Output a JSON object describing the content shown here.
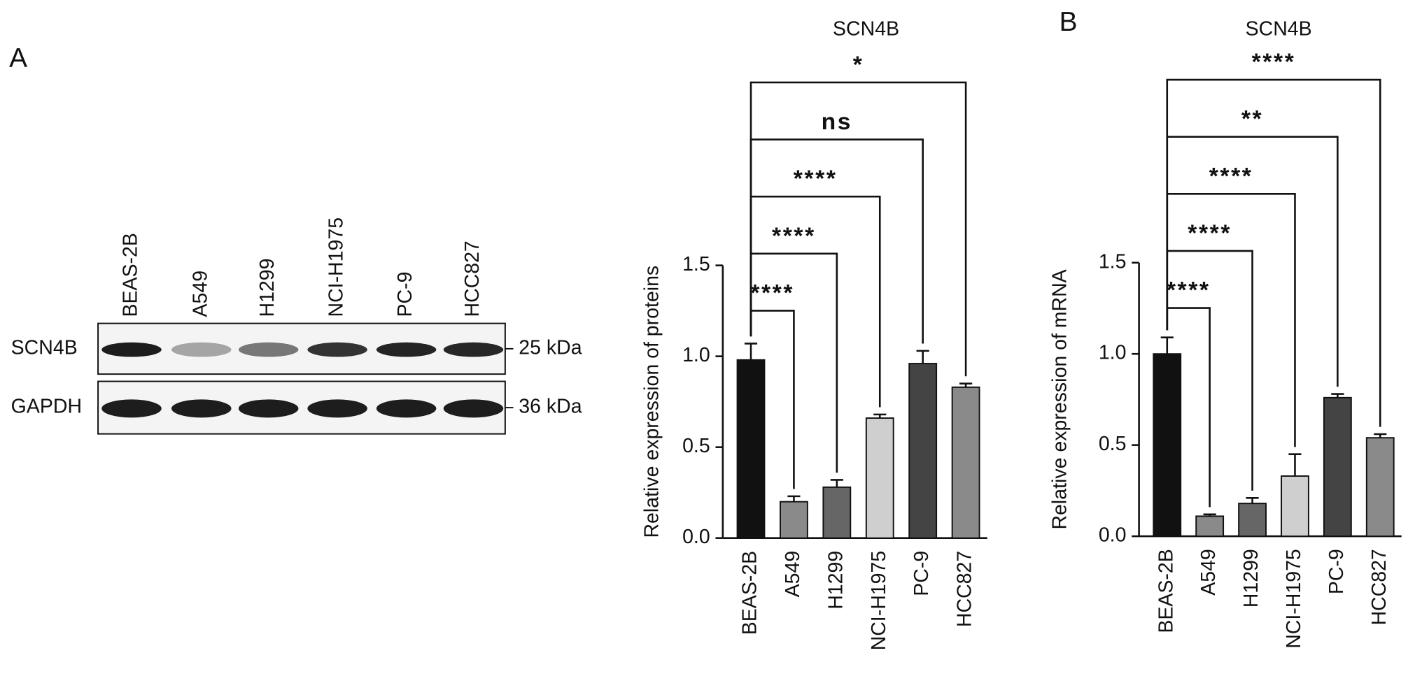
{
  "panel_labels": [
    "A",
    "B"
  ],
  "blot": {
    "lanes": [
      "BEAS-2B",
      "A549",
      "H1299",
      "NCI-H1975",
      "PC-9",
      "HCC827"
    ],
    "rows": [
      {
        "name": "SCN4B",
        "size": "25 kDa"
      },
      {
        "name": "GAPDH",
        "size": "36 kDa"
      }
    ]
  },
  "chart_data": [
    {
      "type": "bar",
      "title": "SCN4B",
      "y_label": "Relative expression of proteins",
      "categories": [
        "BEAS-2B",
        "A549",
        "H1299",
        "NCI-H1975",
        "PC-9",
        "HCC827"
      ],
      "values": [
        0.98,
        0.2,
        0.28,
        0.66,
        0.96,
        0.83
      ],
      "errors": [
        0.09,
        0.03,
        0.04,
        0.02,
        0.07,
        0.02
      ],
      "colors": [
        "#111111",
        "#8a8a8a",
        "#666666",
        "#cfcfcf",
        "#444444",
        "#8a8a8a"
      ],
      "annotations": [
        "****",
        "****",
        "****",
        "ns",
        "*"
      ],
      "ylim": [
        0,
        1.5
      ],
      "yticks": [
        {
          "value": 0,
          "label": "0.0"
        },
        0.5,
        {
          "value": 1,
          "label": "1.0"
        },
        1.5
      ]
    },
    {
      "type": "bar",
      "title": "SCN4B",
      "y_label": "Relative expression of mRNA",
      "categories": [
        "BEAS-2B",
        "A549",
        "H1299",
        "NCI-H1975",
        "PC-9",
        "HCC827"
      ],
      "values": [
        1.0,
        0.11,
        0.18,
        0.33,
        0.76,
        0.54
      ],
      "errors": [
        0.09,
        0.01,
        0.03,
        0.12,
        0.02,
        0.02
      ],
      "colors": [
        "#111111",
        "#8a8a8a",
        "#666666",
        "#cfcfcf",
        "#444444",
        "#8a8a8a"
      ],
      "annotations": [
        "****",
        "****",
        "****",
        "**",
        "****"
      ],
      "ylim": [
        0,
        1.5
      ],
      "yticks": [
        {
          "value": 0,
          "label": "0.0"
        },
        0.5,
        {
          "value": 1,
          "label": "1.0"
        },
        1.5
      ]
    }
  ]
}
